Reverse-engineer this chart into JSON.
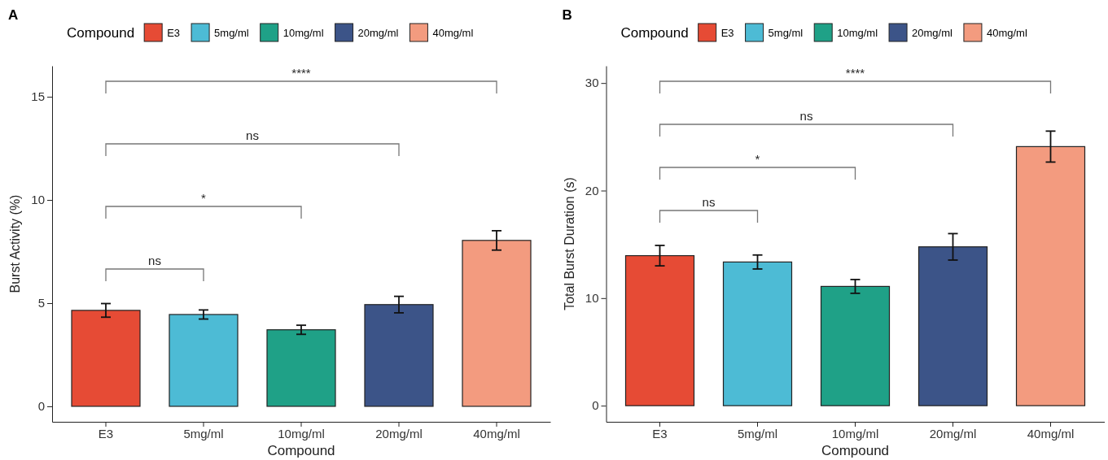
{
  "chart_data": [
    {
      "type": "bar",
      "title": "A",
      "xlabel": "Compound",
      "ylabel": "Burst Activity (%)",
      "legend_title": "Compound",
      "legend": "top",
      "categories": [
        "E3",
        "5mg/ml",
        "10mg/ml",
        "20mg/ml",
        "40mg/ml"
      ],
      "series": [
        {
          "name": "E3",
          "color": "#e64b35",
          "values": [
            4.65,
            null,
            null,
            null,
            null
          ],
          "errors": [
            0.33,
            null,
            null,
            null,
            null
          ]
        },
        {
          "name": "5mg/ml",
          "color": "#4dbbd5",
          "values": [
            null,
            4.45,
            null,
            null,
            null
          ],
          "errors": [
            null,
            0.22,
            null,
            null,
            null
          ]
        },
        {
          "name": "10mg/ml",
          "color": "#1fa187",
          "values": [
            null,
            null,
            3.71,
            null,
            null
          ],
          "errors": [
            null,
            null,
            0.22,
            null,
            null
          ]
        },
        {
          "name": "20mg/ml",
          "color": "#3c5488",
          "values": [
            null,
            null,
            null,
            4.93,
            null
          ],
          "errors": [
            null,
            null,
            null,
            0.4,
            null
          ]
        },
        {
          "name": "40mg/ml",
          "color": "#f39b7f",
          "values": [
            null,
            null,
            null,
            null,
            8.04
          ],
          "errors": [
            null,
            null,
            null,
            null,
            0.47
          ]
        }
      ],
      "ylim": [
        -0.75,
        16.5
      ],
      "yticks": [
        0,
        5,
        10,
        15
      ],
      "grid": false,
      "annotations": [
        "****",
        "ns",
        "*",
        "ns"
      ]
    },
    {
      "type": "bar",
      "title": "B",
      "xlabel": "Compound",
      "ylabel": "Total Burst Duration (s)",
      "legend_title": "Compound",
      "legend": "top",
      "categories": [
        "E3",
        "5mg/ml",
        "10mg/ml",
        "20mg/ml",
        "40mg/ml"
      ],
      "series": [
        {
          "name": "E3",
          "color": "#e64b35",
          "values": [
            13.95,
            null,
            null,
            null,
            null
          ],
          "errors": [
            0.95,
            null,
            null,
            null,
            null
          ]
        },
        {
          "name": "5mg/ml",
          "color": "#4dbbd5",
          "values": [
            null,
            13.36,
            null,
            null,
            null
          ],
          "errors": [
            null,
            0.65,
            null,
            null,
            null
          ]
        },
        {
          "name": "10mg/ml",
          "color": "#1fa187",
          "values": [
            null,
            null,
            11.09,
            null,
            null
          ],
          "errors": [
            null,
            null,
            0.64,
            null,
            null
          ]
        },
        {
          "name": "20mg/ml",
          "color": "#3c5488",
          "values": [
            null,
            null,
            null,
            14.77,
            null
          ],
          "errors": [
            null,
            null,
            null,
            1.23,
            null
          ]
        },
        {
          "name": "40mg/ml",
          "color": "#f39b7f",
          "values": [
            null,
            null,
            null,
            null,
            24.09
          ],
          "errors": [
            null,
            null,
            null,
            null,
            1.44
          ]
        }
      ],
      "ylim": [
        -1.5,
        31.6
      ],
      "yticks": [
        0,
        10,
        20,
        30
      ],
      "grid": false,
      "annotations": [
        "****",
        "ns",
        "*",
        "ns"
      ]
    }
  ]
}
